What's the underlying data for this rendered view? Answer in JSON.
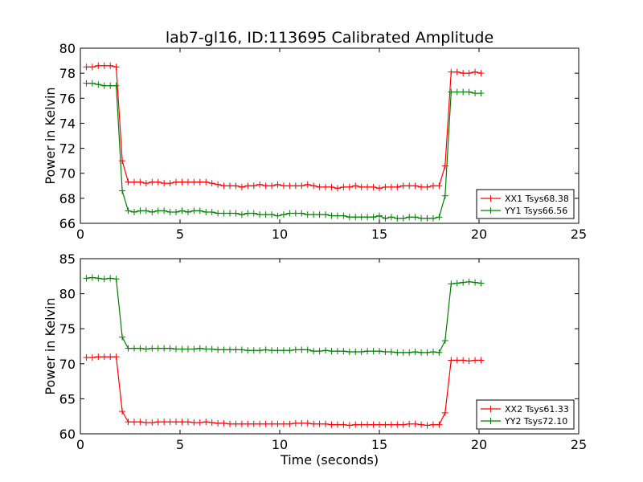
{
  "figure": {
    "title": "lab7-gl16, ID:113695 Calibrated Amplitude",
    "xlabel": "Time (seconds)"
  },
  "chart_data": [
    {
      "type": "line",
      "title": "lab7-gl16, ID:113695 Calibrated Amplitude",
      "xlabel": "",
      "ylabel": "Power in Kelvin",
      "xlim": [
        0,
        25
      ],
      "ylim": [
        66,
        80
      ],
      "xticks": [
        "0",
        "5",
        "10",
        "15",
        "20",
        "25"
      ],
      "yticks": [
        "66",
        "68",
        "70",
        "72",
        "74",
        "76",
        "78",
        "80"
      ],
      "grid": false,
      "legend_position": "bottom-right",
      "x": [
        0.3,
        0.6,
        0.9,
        1.2,
        1.5,
        1.8,
        2.1,
        2.4,
        2.7,
        3.0,
        3.3,
        3.6,
        3.9,
        4.2,
        4.5,
        4.8,
        5.1,
        5.4,
        5.7,
        6.0,
        6.3,
        6.6,
        6.9,
        7.2,
        7.5,
        7.8,
        8.1,
        8.4,
        8.7,
        9.0,
        9.3,
        9.6,
        9.9,
        10.2,
        10.5,
        10.8,
        11.1,
        11.4,
        11.7,
        12.0,
        12.3,
        12.6,
        12.9,
        13.2,
        13.5,
        13.8,
        14.1,
        14.4,
        14.7,
        15.0,
        15.3,
        15.6,
        15.9,
        16.2,
        16.5,
        16.8,
        17.1,
        17.4,
        17.7,
        18.0,
        18.3,
        18.6,
        18.9,
        19.2,
        19.5,
        19.8,
        20.1
      ],
      "series": [
        {
          "name": "XX1 Tsys68.38",
          "color": "#ff0000",
          "values": [
            78.5,
            78.5,
            78.6,
            78.6,
            78.6,
            78.5,
            71.0,
            69.3,
            69.3,
            69.3,
            69.2,
            69.3,
            69.3,
            69.2,
            69.2,
            69.3,
            69.3,
            69.3,
            69.3,
            69.3,
            69.3,
            69.2,
            69.1,
            69.0,
            69.0,
            69.0,
            68.9,
            69.0,
            69.0,
            69.1,
            69.0,
            69.0,
            69.1,
            69.0,
            69.0,
            69.0,
            69.0,
            69.1,
            69.0,
            68.9,
            68.9,
            68.9,
            68.8,
            68.9,
            68.9,
            69.0,
            68.9,
            68.9,
            68.9,
            68.8,
            68.9,
            68.9,
            68.9,
            69.0,
            69.0,
            69.0,
            68.9,
            68.9,
            69.0,
            69.0,
            70.6,
            78.1,
            78.1,
            78.0,
            78.0,
            78.1,
            78.0
          ]
        },
        {
          "name": "YY1 Tsys66.56",
          "color": "#008000",
          "values": [
            77.2,
            77.2,
            77.1,
            77.0,
            77.0,
            77.0,
            68.6,
            67.0,
            66.9,
            67.0,
            67.0,
            66.9,
            67.0,
            67.0,
            66.9,
            66.9,
            67.0,
            66.9,
            67.0,
            67.0,
            66.9,
            66.9,
            66.8,
            66.8,
            66.8,
            66.8,
            66.7,
            66.8,
            66.8,
            66.7,
            66.7,
            66.7,
            66.6,
            66.7,
            66.8,
            66.8,
            66.8,
            66.7,
            66.7,
            66.7,
            66.7,
            66.6,
            66.6,
            66.6,
            66.5,
            66.5,
            66.5,
            66.5,
            66.5,
            66.6,
            66.4,
            66.5,
            66.4,
            66.4,
            66.5,
            66.5,
            66.4,
            66.4,
            66.4,
            66.5,
            68.2,
            76.5,
            76.5,
            76.5,
            76.5,
            76.4,
            76.4
          ]
        }
      ]
    },
    {
      "type": "line",
      "title": "",
      "xlabel": "Time (seconds)",
      "ylabel": "Power in Kelvin",
      "xlim": [
        0,
        25
      ],
      "ylim": [
        60,
        85
      ],
      "xticks": [
        "0",
        "5",
        "10",
        "15",
        "20",
        "25"
      ],
      "yticks": [
        "60",
        "65",
        "70",
        "75",
        "80",
        "85"
      ],
      "grid": false,
      "legend_position": "bottom-right",
      "x": [
        0.3,
        0.6,
        0.9,
        1.2,
        1.5,
        1.8,
        2.1,
        2.4,
        2.7,
        3.0,
        3.3,
        3.6,
        3.9,
        4.2,
        4.5,
        4.8,
        5.1,
        5.4,
        5.7,
        6.0,
        6.3,
        6.6,
        6.9,
        7.2,
        7.5,
        7.8,
        8.1,
        8.4,
        8.7,
        9.0,
        9.3,
        9.6,
        9.9,
        10.2,
        10.5,
        10.8,
        11.1,
        11.4,
        11.7,
        12.0,
        12.3,
        12.6,
        12.9,
        13.2,
        13.5,
        13.8,
        14.1,
        14.4,
        14.7,
        15.0,
        15.3,
        15.6,
        15.9,
        16.2,
        16.5,
        16.8,
        17.1,
        17.4,
        17.7,
        18.0,
        18.3,
        18.6,
        18.9,
        19.2,
        19.5,
        19.8,
        20.1
      ],
      "series": [
        {
          "name": "XX2 Tsys61.33",
          "color": "#ff0000",
          "values": [
            70.9,
            70.9,
            71.0,
            71.0,
            71.0,
            71.0,
            63.2,
            61.7,
            61.7,
            61.7,
            61.6,
            61.6,
            61.7,
            61.7,
            61.7,
            61.7,
            61.7,
            61.7,
            61.6,
            61.6,
            61.7,
            61.6,
            61.5,
            61.5,
            61.4,
            61.4,
            61.4,
            61.4,
            61.4,
            61.4,
            61.4,
            61.4,
            61.4,
            61.4,
            61.4,
            61.5,
            61.5,
            61.5,
            61.4,
            61.4,
            61.4,
            61.3,
            61.3,
            61.3,
            61.2,
            61.3,
            61.3,
            61.3,
            61.3,
            61.3,
            61.3,
            61.3,
            61.3,
            61.3,
            61.4,
            61.4,
            61.3,
            61.2,
            61.3,
            61.3,
            63.0,
            70.5,
            70.5,
            70.5,
            70.4,
            70.5,
            70.5
          ]
        },
        {
          "name": "YY2 Tsys72.10",
          "color": "#008000",
          "values": [
            82.2,
            82.3,
            82.2,
            82.1,
            82.2,
            82.1,
            73.8,
            72.2,
            72.2,
            72.2,
            72.1,
            72.2,
            72.2,
            72.2,
            72.2,
            72.1,
            72.1,
            72.1,
            72.1,
            72.2,
            72.1,
            72.1,
            72.0,
            72.0,
            72.0,
            72.0,
            72.0,
            71.9,
            71.9,
            71.9,
            72.0,
            71.9,
            71.9,
            71.9,
            71.9,
            72.0,
            72.0,
            72.0,
            71.8,
            71.8,
            71.9,
            71.8,
            71.8,
            71.8,
            71.7,
            71.7,
            71.7,
            71.8,
            71.8,
            71.8,
            71.7,
            71.7,
            71.6,
            71.6,
            71.6,
            71.7,
            71.6,
            71.6,
            71.7,
            71.6,
            73.3,
            81.4,
            81.5,
            81.6,
            81.7,
            81.6,
            81.5
          ]
        }
      ]
    }
  ]
}
